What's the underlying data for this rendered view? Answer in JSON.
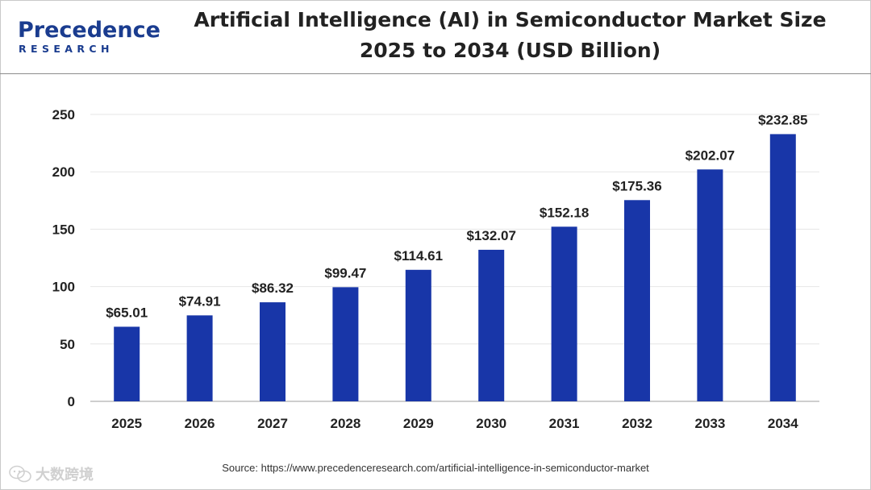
{
  "header": {
    "logo_word": "Precedence",
    "logo_sub": "RESEARCH",
    "title_line1": "Artificial Intelligence (AI) in Semiconductor Market Size",
    "title_line2": "2025 to 2034 (USD Billion)"
  },
  "chart_data": {
    "type": "bar",
    "title": "Artificial Intelligence (AI) in Semiconductor Market Size 2025 to 2034 (USD Billion)",
    "categories": [
      "2025",
      "2026",
      "2027",
      "2028",
      "2029",
      "2030",
      "2031",
      "2032",
      "2033",
      "2034"
    ],
    "values": [
      65.01,
      74.91,
      86.32,
      99.47,
      114.61,
      132.07,
      152.18,
      175.36,
      202.07,
      232.85
    ],
    "value_labels": [
      "$65.01",
      "$74.91",
      "$86.32",
      "$99.47",
      "$114.61",
      "$132.07",
      "$152.18",
      "$175.36",
      "$202.07",
      "$232.85"
    ],
    "ylim": [
      0,
      250
    ],
    "yticks": [
      "0",
      "50",
      "100",
      "150",
      "200",
      "250"
    ],
    "xlabel": "",
    "ylabel": "",
    "grid": true,
    "bar_color": "#1836a8"
  },
  "footer": {
    "source": "Source: https://www.precedenceresearch.com/artificial-intelligence-in-semiconductor-market",
    "watermark_icon": "wechat-logo-icon",
    "watermark": "大数跨境"
  }
}
